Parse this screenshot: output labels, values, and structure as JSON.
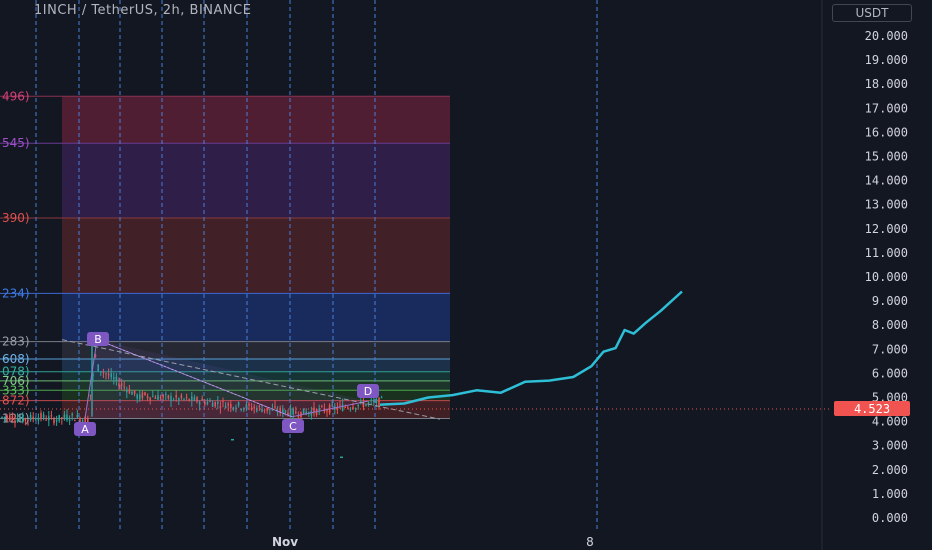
{
  "header": {
    "title": "1INCH / TetherUS, 2h, BINANCE",
    "currency": "USDT"
  },
  "price_axis": {
    "ticks": [
      "20.000",
      "19.000",
      "18.000",
      "17.000",
      "16.000",
      "15.000",
      "14.000",
      "13.000",
      "12.000",
      "11.000",
      "10.000",
      "9.000",
      "8.000",
      "7.000",
      "6.000",
      "5.000",
      "4.000",
      "3.000",
      "2.000",
      "1.000",
      "0.000"
    ],
    "current_price": "4.523"
  },
  "time_axis": {
    "labels": [
      "Nov",
      "8"
    ]
  },
  "colors": {
    "background": "#131722",
    "projection": "#2ebfd7",
    "current_price": "#f05350",
    "pattern": "#7e57c2"
  },
  "chart_data": {
    "type": "line",
    "ylim": [
      0,
      20
    ],
    "left_level_labels": [
      {
        "text": "496)",
        "color": "#d64078",
        "price": 17.5
      },
      {
        "text": "545)",
        "color": "#a04fcc",
        "price": 15.55
      },
      {
        "text": "390)",
        "color": "#e2504d",
        "price": 12.45
      },
      {
        "text": "234)",
        "color": "#3d7ce8",
        "price": 9.32
      },
      {
        "text": "283)",
        "color": "#9a9ea8",
        "price": 7.32
      },
      {
        "text": "608)",
        "color": "#6fb2e8",
        "price": 6.6
      },
      {
        "text": "078)",
        "color": "#34b09e",
        "price": 6.07
      },
      {
        "text": "706)",
        "color": "#85c98c",
        "price": 5.69
      },
      {
        "text": "333)",
        "color": "#5fbf5f",
        "price": 5.3
      },
      {
        "text": "872)",
        "color": "#e2504d",
        "price": 4.87
      },
      {
        "text": "128)",
        "color": "#9a9ea8",
        "price": 4.13
      }
    ],
    "pattern_points": [
      {
        "label": "A",
        "price": 4.13
      },
      {
        "label": "B",
        "price": 7.4
      },
      {
        "label": "C",
        "price": 4.2
      },
      {
        "label": "D",
        "price": 4.85
      }
    ],
    "projection": [
      {
        "t": 0.0,
        "y": 4.7
      },
      {
        "t": 0.08,
        "y": 4.75
      },
      {
        "t": 0.16,
        "y": 5.0
      },
      {
        "t": 0.24,
        "y": 5.1
      },
      {
        "t": 0.32,
        "y": 5.3
      },
      {
        "t": 0.4,
        "y": 5.2
      },
      {
        "t": 0.48,
        "y": 5.65
      },
      {
        "t": 0.56,
        "y": 5.7
      },
      {
        "t": 0.64,
        "y": 5.85
      },
      {
        "t": 0.7,
        "y": 6.3
      },
      {
        "t": 0.74,
        "y": 6.9
      },
      {
        "t": 0.78,
        "y": 7.05
      },
      {
        "t": 0.81,
        "y": 7.8
      },
      {
        "t": 0.84,
        "y": 7.65
      },
      {
        "t": 0.88,
        "y": 8.1
      },
      {
        "t": 0.93,
        "y": 8.6
      },
      {
        "t": 1.0,
        "y": 9.4
      }
    ],
    "current_price": 4.523
  }
}
